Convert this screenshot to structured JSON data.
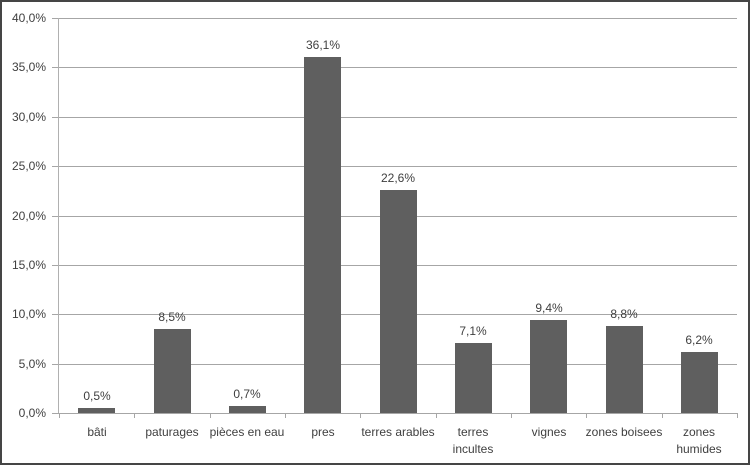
{
  "chart": {
    "background_color": "#ffffff",
    "border_color": "#454545",
    "bar_color": "#5f5f5f",
    "gridline_color": "#a6a6a6",
    "axis_color": "#b0b0b0",
    "text_color": "#3f3f3f"
  },
  "chart_data": {
    "type": "bar",
    "title": "",
    "xlabel": "",
    "ylabel": "",
    "categories": [
      "bâti",
      "paturages",
      "pièces en eau",
      "pres",
      "terres arables",
      "terres incultes",
      "vignes",
      "zones boisees",
      "zones humides"
    ],
    "categories_display": [
      "bâti",
      "paturages",
      "pièces en eau",
      "pres",
      "terres arables",
      "terres\nincultes",
      "vignes",
      "zones boisees",
      "zones\nhumides"
    ],
    "values": [
      0.5,
      8.5,
      0.7,
      36.1,
      22.6,
      7.1,
      9.4,
      8.8,
      6.2
    ],
    "data_labels": [
      "0,5%",
      "8,5%",
      "0,7%",
      "36,1%",
      "22,6%",
      "7,1%",
      "9,4%",
      "8,8%",
      "6,2%"
    ],
    "y_tick_values": [
      0,
      5,
      10,
      15,
      20,
      25,
      30,
      35,
      40
    ],
    "y_tick_labels": [
      "0,0%",
      "5,0%",
      "10,0%",
      "15,0%",
      "20,0%",
      "25,0%",
      "30,0%",
      "35,0%",
      "40,0%"
    ],
    "ylim": [
      0,
      40
    ],
    "y_step": 5,
    "grid": true,
    "legend": false
  }
}
